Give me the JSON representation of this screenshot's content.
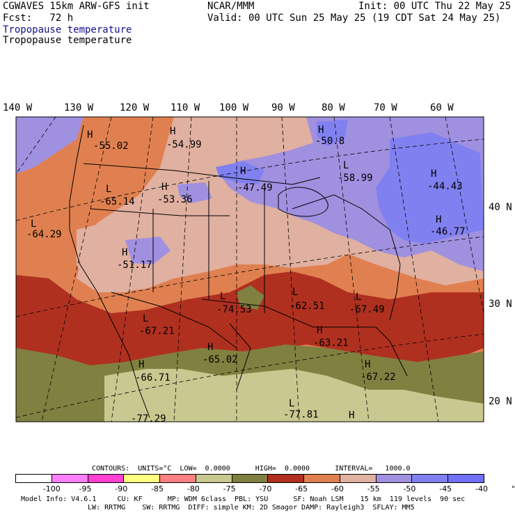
{
  "header": {
    "model": "CGWAVES 15km ARW-GFS init",
    "org": "NCAR/MMM",
    "init": "Init: 00 UTC Thu 22 May 25",
    "fcst_label": "Fcst:   72 h",
    "valid": "Valid: 00 UTC Sun 25 May 25 (19 CDT Sat 24 May 25)",
    "field1": "Tropopause temperature",
    "field2": "Tropopause temperature"
  },
  "longitudes": [
    "140 W",
    "130 W",
    "120 W",
    "110 W",
    "100 W",
    "90 W",
    "80 W",
    "70 W",
    "60 W"
  ],
  "latitudes": [
    "40 N",
    "30 N",
    "20 N"
  ],
  "extrema": [
    {
      "label": "H",
      "value": "-55.02"
    },
    {
      "label": "H",
      "value": "-54.99"
    },
    {
      "label": "H",
      "value": "-50.8"
    },
    {
      "label": "L",
      "value": "-58.99"
    },
    {
      "label": "H",
      "value": "-47.49"
    },
    {
      "label": "H",
      "value": "-44.43"
    },
    {
      "label": "L",
      "value": "-65.14"
    },
    {
      "label": "H",
      "value": "-53.36"
    },
    {
      "label": "L",
      "value": "-64.29"
    },
    {
      "label": "H",
      "value": "-46.77"
    },
    {
      "label": "H",
      "value": "-51.17"
    },
    {
      "label": "L",
      "value": "-74.53"
    },
    {
      "label": "L",
      "value": "-62.51"
    },
    {
      "label": "L",
      "value": "-67.49"
    },
    {
      "label": "L",
      "value": "-67.21"
    },
    {
      "label": "H",
      "value": "-63.21"
    },
    {
      "label": "H",
      "value": "-65.02"
    },
    {
      "label": "H",
      "value": "-66.71"
    },
    {
      "label": "H",
      "value": "-67.22"
    },
    {
      "label": "L",
      "value": "-77.81"
    },
    {
      "label": "H",
      "value": "-77.29"
    }
  ],
  "contours_line": "CONTOURS:  UNITS=°C  LOW=  0.0000      HIGH=  0.0000      INTERVAL=   1000.0",
  "colorbar": {
    "colors": [
      "#ffffff",
      "#ff80ff",
      "#ff40d0",
      "#ffff80",
      "#ff8080",
      "#c8c890",
      "#808040",
      "#b03020",
      "#e08050",
      "#e0b0a0",
      "#a090e0",
      "#8080f0",
      "#7070f8"
    ],
    "labels": [
      "-100",
      "-95",
      "-90",
      "-85",
      "-80",
      "-75",
      "-70",
      "-65",
      "-60",
      "-55",
      "-50",
      "-45",
      "-40",
      "°C"
    ]
  },
  "footer": {
    "line1": "Model Info: V4.6.1     CU: KF      MP: WDM 6class  PBL: YSU      SF: Noah LSM    15 km  119 levels  90 sec",
    "line2": "LW: RRTMG    SW: RRTMG  DIFF: simple KM: 2D Smagor DAMP: Rayleigh3  SFLAY: MM5"
  }
}
